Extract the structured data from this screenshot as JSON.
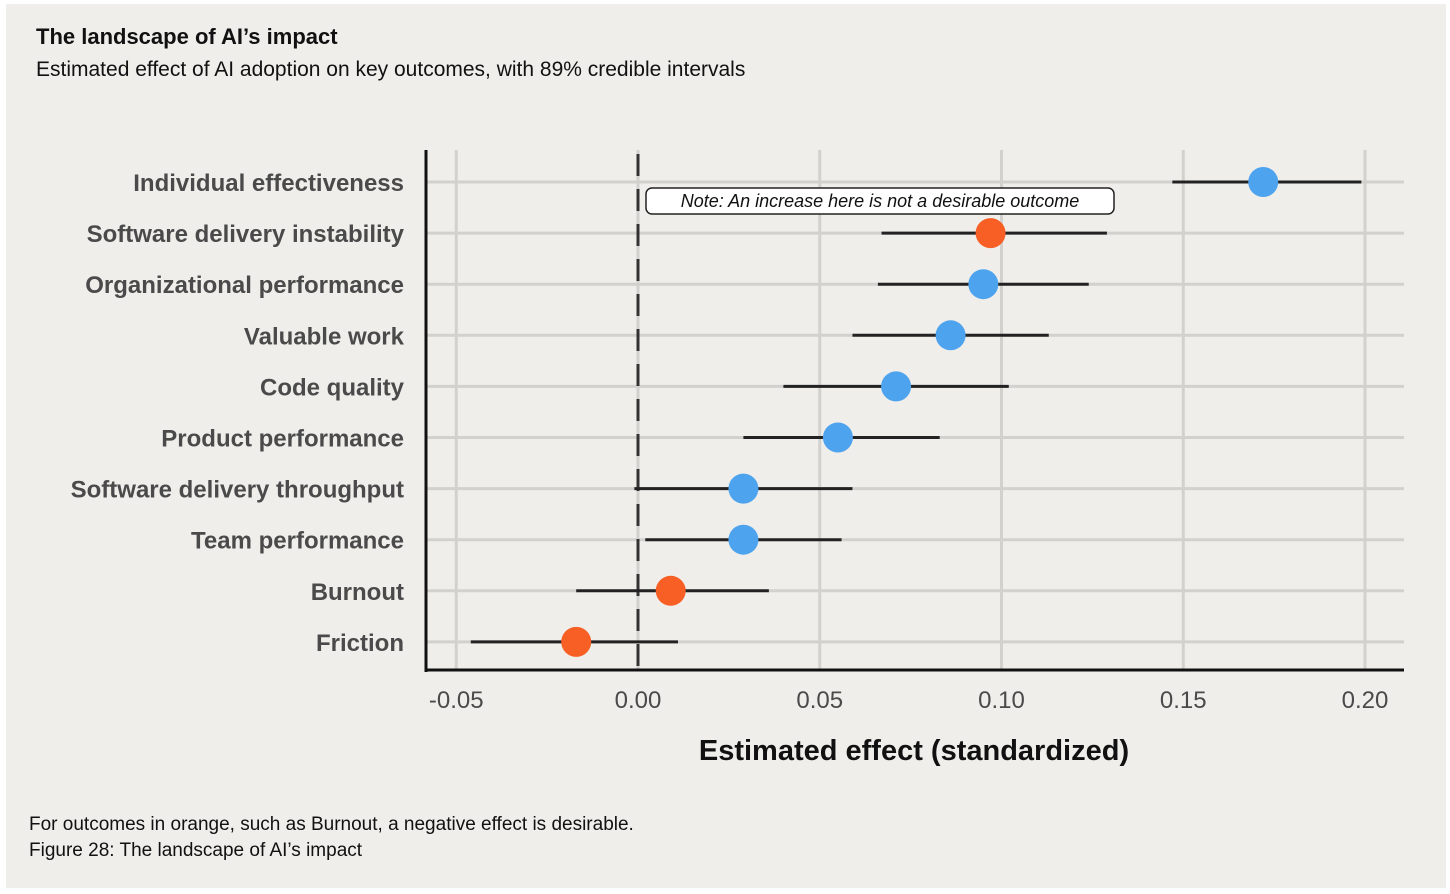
{
  "header": {
    "title": "The landscape of AI’s impact",
    "subtitle": "Estimated effect of AI adoption on key outcomes, with 89% credible intervals"
  },
  "footer": {
    "note": "For outcomes in orange, such as Burnout, a negative effect is desirable.",
    "caption": "Figure 28: The landscape of AI’s impact"
  },
  "chart_data": {
    "type": "scatter",
    "subtype": "forest-plot",
    "title": "The landscape of AI’s impact",
    "xlabel": "Estimated effect (standardized)",
    "ylabel": "",
    "xlim": [
      -0.055,
      0.212
    ],
    "xticks": [
      -0.05,
      0.0,
      0.05,
      0.1,
      0.15,
      0.2
    ],
    "xtick_labels": [
      "-0.05",
      "0.00",
      "0.05",
      "0.10",
      "0.15",
      "0.20"
    ],
    "reference_line": 0.0,
    "grid": true,
    "colors": {
      "positive_desirable": "#4ea3ee",
      "negative_desirable": "#f75f24",
      "interval": "#222222"
    },
    "annotation": {
      "text": "Note: An increase here is not a desirable outcome",
      "target": "Software delivery instability"
    },
    "rows": [
      {
        "label": "Individual effectiveness",
        "estimate": 0.172,
        "lower": 0.147,
        "upper": 0.199,
        "group": "positive_desirable"
      },
      {
        "label": "Software delivery instability",
        "estimate": 0.097,
        "lower": 0.067,
        "upper": 0.129,
        "group": "negative_desirable"
      },
      {
        "label": "Organizational performance",
        "estimate": 0.095,
        "lower": 0.066,
        "upper": 0.124,
        "group": "positive_desirable"
      },
      {
        "label": "Valuable work",
        "estimate": 0.086,
        "lower": 0.059,
        "upper": 0.113,
        "group": "positive_desirable"
      },
      {
        "label": "Code quality",
        "estimate": 0.071,
        "lower": 0.04,
        "upper": 0.102,
        "group": "positive_desirable"
      },
      {
        "label": "Product performance",
        "estimate": 0.055,
        "lower": 0.029,
        "upper": 0.083,
        "group": "positive_desirable"
      },
      {
        "label": "Software delivery throughput",
        "estimate": 0.029,
        "lower": -0.001,
        "upper": 0.059,
        "group": "positive_desirable"
      },
      {
        "label": "Team performance",
        "estimate": 0.029,
        "lower": 0.002,
        "upper": 0.056,
        "group": "positive_desirable"
      },
      {
        "label": "Burnout",
        "estimate": 0.009,
        "lower": -0.017,
        "upper": 0.036,
        "group": "negative_desirable"
      },
      {
        "label": "Friction",
        "estimate": -0.017,
        "lower": -0.046,
        "upper": 0.011,
        "group": "negative_desirable"
      }
    ]
  }
}
